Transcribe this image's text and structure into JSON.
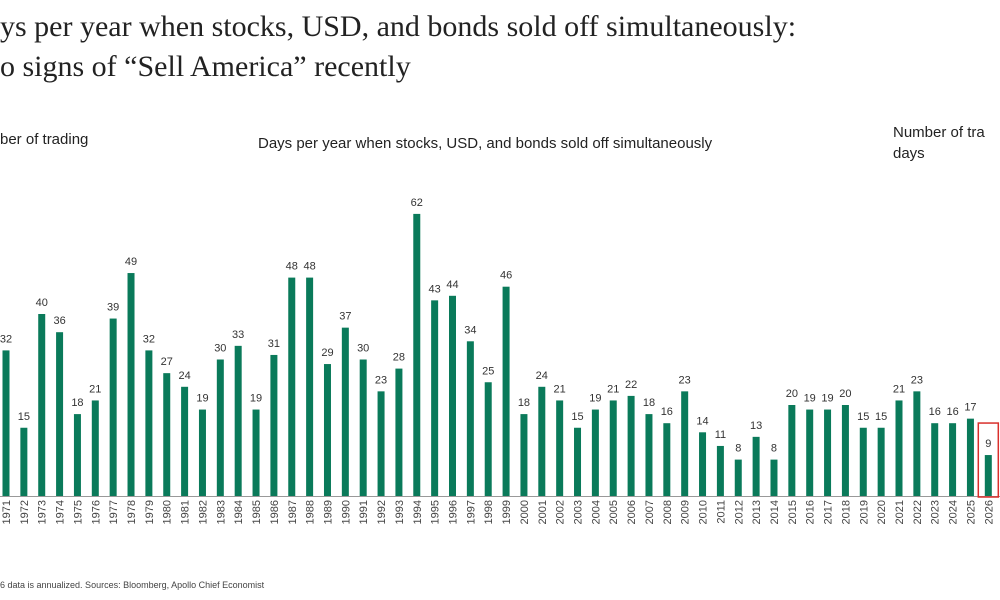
{
  "title_line1": "ys per year when stocks, USD, and bonds sold off simultaneously:",
  "title_line2": "o signs of “Sell America” recently",
  "chart_data": {
    "type": "bar",
    "title": "Days per year when stocks, USD, and bonds sold off simultaneously",
    "ylabel_left": "ber of trading",
    "ylabel_right_line1": "Number of tra",
    "ylabel_right_line2": "days",
    "categories": [
      "1971",
      "1972",
      "1973",
      "1974",
      "1975",
      "1976",
      "1977",
      "1978",
      "1979",
      "1980",
      "1981",
      "1982",
      "1983",
      "1984",
      "1985",
      "1986",
      "1987",
      "1988",
      "1989",
      "1990",
      "1991",
      "1992",
      "1993",
      "1994",
      "1995",
      "1996",
      "1997",
      "1998",
      "1999",
      "2000",
      "2001",
      "2002",
      "2003",
      "2004",
      "2005",
      "2006",
      "2007",
      "2008",
      "2009",
      "2010",
      "2011",
      "2012",
      "2013",
      "2014",
      "2015",
      "2016",
      "2017",
      "2018",
      "2019",
      "2020",
      "2021",
      "2022",
      "2023",
      "2024",
      "2025",
      "2026"
    ],
    "values": [
      32,
      15,
      40,
      36,
      18,
      21,
      39,
      49,
      32,
      27,
      24,
      19,
      30,
      33,
      19,
      31,
      48,
      48,
      29,
      37,
      30,
      23,
      28,
      62,
      43,
      44,
      34,
      25,
      46,
      18,
      24,
      21,
      15,
      19,
      21,
      22,
      18,
      16,
      23,
      14,
      11,
      8,
      13,
      8,
      20,
      19,
      19,
      20,
      15,
      15,
      21,
      23,
      16,
      16,
      17,
      9
    ],
    "highlighted": "2026",
    "bar_color": "#0a7a5a",
    "highlight_box_color": "#d9302c",
    "data_labels": true,
    "grid": false
  },
  "footnote": "6 data is annualized. Sources: Bloomberg, Apollo Chief Economist"
}
